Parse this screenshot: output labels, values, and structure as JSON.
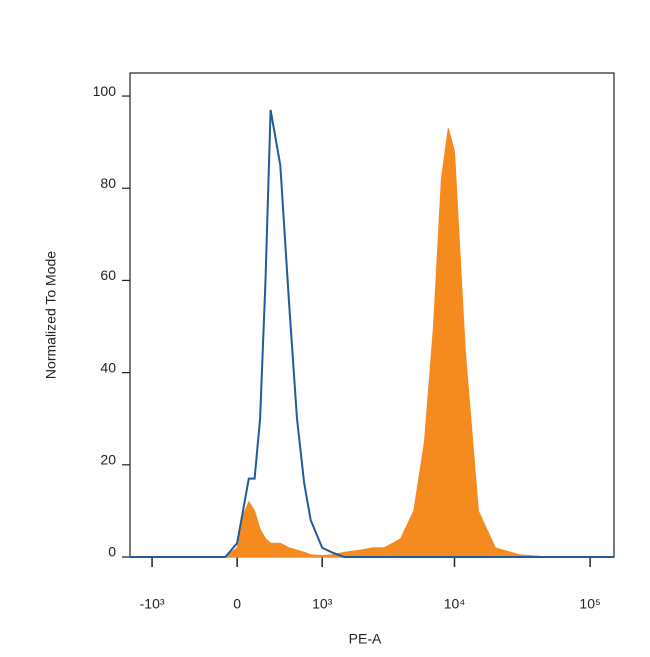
{
  "chart_data": {
    "type": "histogram-overlay",
    "x_label": "PE-A",
    "y_label": "Normalized To Mode",
    "xscale": "biexponential",
    "xlim": [
      -1500,
      150000
    ],
    "xticks": [
      {
        "value": -1000,
        "label": "-10³"
      },
      {
        "value": 0,
        "label": "0"
      },
      {
        "value": 1000,
        "label": "10³"
      },
      {
        "value": 10000,
        "label": "10⁴"
      },
      {
        "value": 100000,
        "label": "10⁵"
      }
    ],
    "ylim": [
      0,
      105
    ],
    "yticks": [
      0,
      20,
      40,
      60,
      80,
      100
    ],
    "x": [
      -1500,
      -500,
      -200,
      -100,
      0,
      50,
      100,
      150,
      200,
      250,
      300,
      400,
      500,
      600,
      700,
      800,
      1000,
      1200,
      1500,
      2000,
      2500,
      3000,
      3500,
      4000,
      5000,
      6000,
      7000,
      8000,
      9000,
      10000,
      12000,
      15000,
      20000,
      30000,
      50000,
      150000
    ],
    "series": [
      {
        "color": "#f58a1f",
        "fill": true,
        "values": [
          0,
          0,
          0,
          0,
          2,
          9,
          12,
          10,
          6,
          4,
          3,
          3,
          2,
          1.5,
          1,
          0.5,
          0.3,
          0.5,
          1,
          1.5,
          2,
          2,
          3,
          4,
          10,
          25,
          50,
          82,
          93,
          88,
          45,
          10,
          2,
          0.5,
          0,
          0
        ]
      },
      {
        "color": "#1f5c99",
        "fill": false,
        "values": [
          0,
          0,
          0,
          0,
          3,
          10,
          17,
          17,
          30,
          60,
          97,
          85,
          55,
          30,
          16,
          8,
          2,
          1,
          0,
          0,
          0,
          0,
          0,
          0,
          0,
          0,
          0,
          0,
          0,
          0,
          0,
          0,
          0,
          0,
          0,
          0
        ]
      }
    ]
  }
}
